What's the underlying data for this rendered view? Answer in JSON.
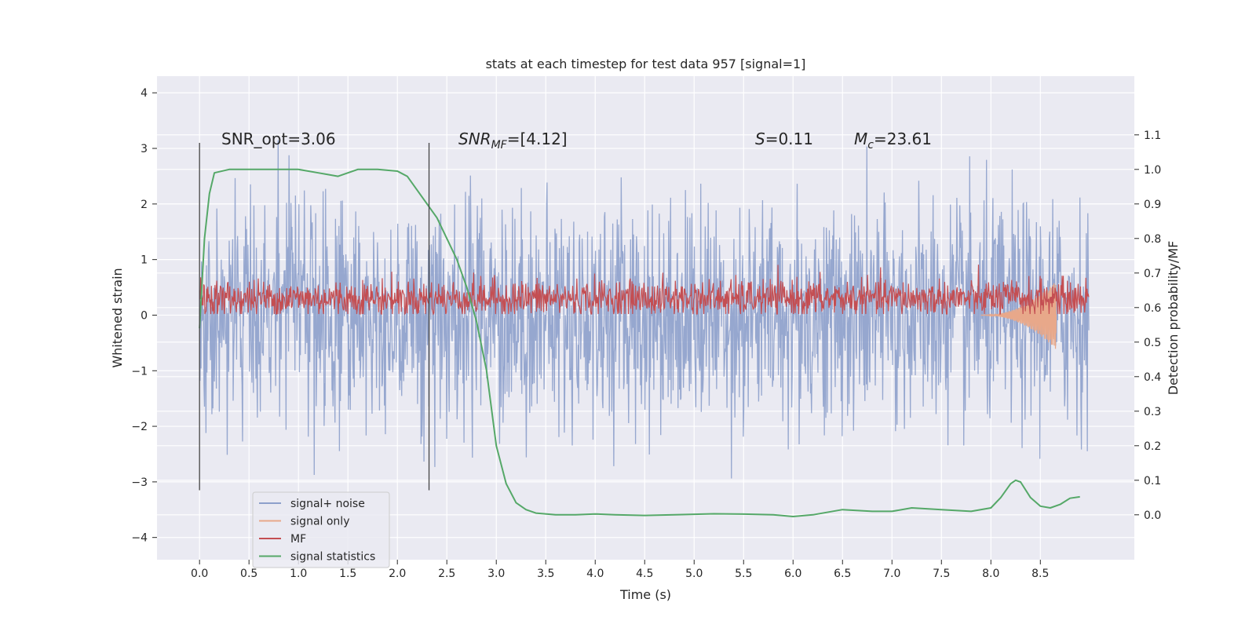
{
  "chart_data": {
    "type": "line",
    "title": "stats at each timestep for test data 957 [signal=1]",
    "xlabel": "Time (s)",
    "ylabel": "Whitened strain",
    "y2label": "Detection probability/MF",
    "xlim": [
      -0.43,
      9.45
    ],
    "ylim": [
      -4.4,
      4.3
    ],
    "y2lim": [
      -0.13,
      1.27
    ],
    "xticks": [
      "0.0",
      "0.5",
      "1.0",
      "1.5",
      "2.0",
      "2.5",
      "3.0",
      "3.5",
      "4.0",
      "4.5",
      "5.0",
      "5.5",
      "6.0",
      "6.5",
      "7.0",
      "7.5",
      "8.0",
      "8.5"
    ],
    "yticks": [
      "4",
      "3",
      "2",
      "1",
      "0",
      "−1",
      "−2",
      "−3",
      "−4"
    ],
    "y2ticks": [
      "1.1",
      "1.0",
      "0.9",
      "0.8",
      "0.7",
      "0.6",
      "0.5",
      "0.4",
      "0.3",
      "0.2",
      "0.1",
      "0.0"
    ],
    "annotations": {
      "snr_opt": "SNR_opt=3.06",
      "snr_mf_main": "SNR",
      "snr_mf_sub": "MF",
      "snr_mf_value": "=[4.12]",
      "s_main": "S",
      "s_value": "=0.11",
      "mc_main": "M",
      "mc_sub": "c",
      "mc_value": "=23.61"
    },
    "vertical_markers": [
      0.0,
      2.32
    ],
    "series": [
      {
        "name": "signal+ noise",
        "color": "#8da0cb",
        "axis": "left",
        "t_range": [
          0.0,
          8.99
        ],
        "amplitude_sigma": 1.0
      },
      {
        "name": "signal only",
        "color": "#e8a88a",
        "axis": "left",
        "t_range": [
          7.9,
          8.66
        ],
        "peak_amplitude": 0.62
      },
      {
        "name": "MF",
        "color": "#c44e52",
        "axis": "left",
        "t_range": [
          0.0,
          8.99
        ],
        "baseline": 0.3
      },
      {
        "name": "signal statistics",
        "color": "#55a868",
        "axis": "right",
        "x": [
          0.0,
          0.05,
          0.1,
          0.15,
          0.3,
          0.5,
          0.8,
          1.0,
          1.2,
          1.3,
          1.4,
          1.5,
          1.6,
          1.8,
          2.0,
          2.1,
          2.2,
          2.3,
          2.4,
          2.5,
          2.6,
          2.7,
          2.8,
          2.9,
          3.0,
          3.1,
          3.2,
          3.3,
          3.4,
          3.6,
          3.8,
          4.0,
          4.2,
          4.5,
          4.8,
          5.0,
          5.2,
          5.5,
          5.8,
          6.0,
          6.2,
          6.5,
          6.8,
          7.0,
          7.2,
          7.5,
          7.8,
          8.0,
          8.1,
          8.2,
          8.25,
          8.3,
          8.4,
          8.5,
          8.6,
          8.7,
          8.8,
          8.9
        ],
        "y": [
          0.54,
          0.8,
          0.93,
          0.99,
          1.0,
          1.0,
          1.0,
          1.0,
          0.99,
          0.985,
          0.98,
          0.99,
          1.0,
          1.0,
          0.995,
          0.98,
          0.94,
          0.9,
          0.86,
          0.8,
          0.74,
          0.66,
          0.56,
          0.42,
          0.2,
          0.09,
          0.035,
          0.015,
          0.005,
          0.0,
          0.0,
          0.0025,
          0.0,
          -0.002,
          0.0,
          0.0015,
          0.003,
          0.002,
          0.0,
          -0.005,
          0.0,
          0.015,
          0.01,
          0.01,
          0.02,
          0.015,
          0.01,
          0.02,
          0.05,
          0.09,
          0.1,
          0.095,
          0.05,
          0.025,
          0.02,
          0.03,
          0.048,
          0.052
        ]
      }
    ],
    "legend": {
      "position": "lower-left",
      "items": [
        "signal+ noise",
        "signal only",
        "MF",
        "signal statistics"
      ]
    }
  }
}
